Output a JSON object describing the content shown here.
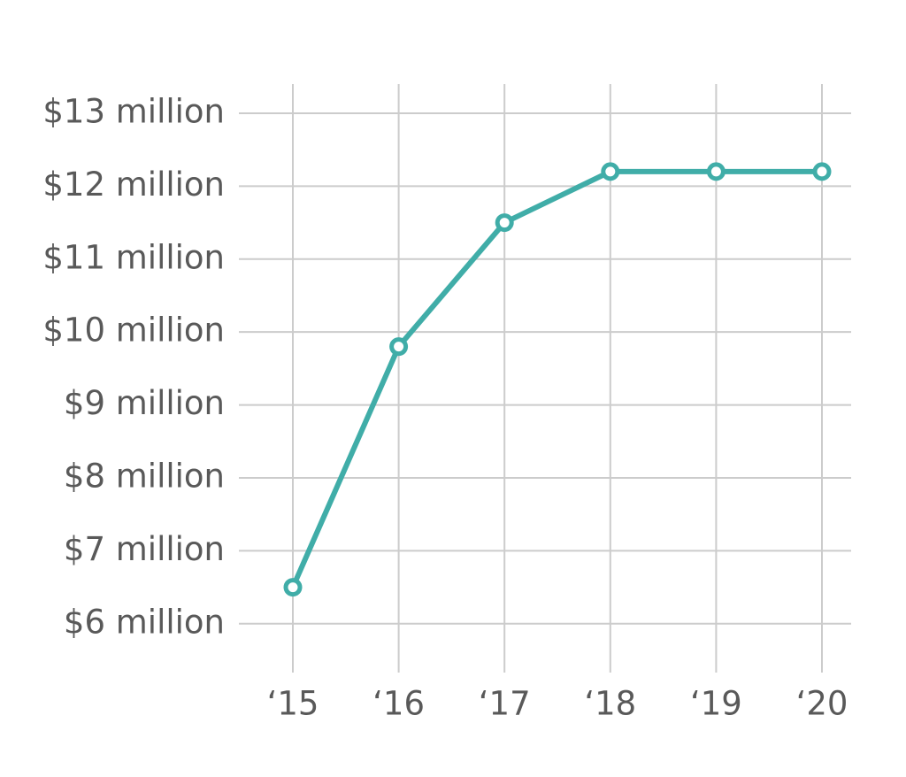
{
  "chart_data": {
    "type": "line",
    "categories": [
      "‘15",
      "‘16",
      "‘17",
      "‘18",
      "‘19",
      "‘20"
    ],
    "series": [
      {
        "color": "#40ada8",
        "values": [
          6500000,
          9800000,
          11500000,
          12200000,
          12200000,
          12200000
        ]
      }
    ],
    "ylim": [
      5330000,
      13400000
    ],
    "yticks": [
      {
        "value": 6000000,
        "label": "$6 million"
      },
      {
        "value": 7000000,
        "label": "$7 million"
      },
      {
        "value": 8000000,
        "label": "$8 million"
      },
      {
        "value": 9000000,
        "label": "$9 million"
      },
      {
        "value": 10000000,
        "label": "$10 million"
      },
      {
        "value": 11000000,
        "label": "$11 million"
      },
      {
        "value": 12000000,
        "label": "$12 million"
      },
      {
        "value": 13000000,
        "label": "$13 million"
      }
    ],
    "grid": true
  }
}
